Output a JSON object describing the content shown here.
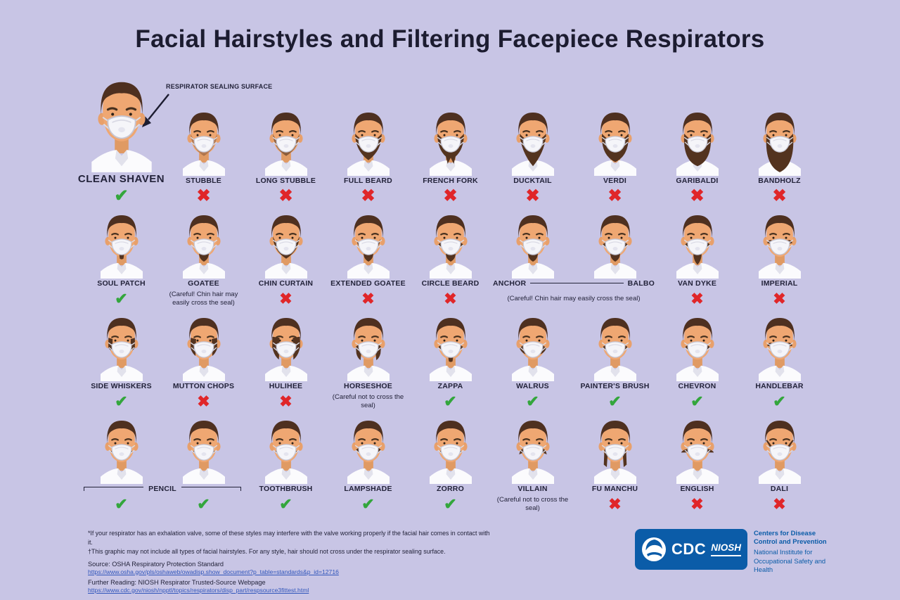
{
  "title": "Facial Hairstyles and Filtering Facepiece Respirators",
  "callout": "RESPIRATOR SEALING SURFACE",
  "icons": {
    "check": "✔",
    "x": "✖"
  },
  "colors": {
    "bg": "#c8c5e5",
    "title": "#1c1c30",
    "ink": "#23233a",
    "check": "#33a63c",
    "x": "#e02629",
    "link": "#3156bb",
    "brand": "#0b5ca8"
  },
  "rows": [
    {
      "items": [
        {
          "label": "CLEAN SHAVEN",
          "mark": "check",
          "beard": "none",
          "large": true
        },
        {
          "label": "STUBBLE",
          "mark": "x",
          "beard": "stubble"
        },
        {
          "label": "LONG STUBBLE",
          "mark": "x",
          "beard": "stubble-long"
        },
        {
          "label": "FULL BEARD",
          "mark": "x",
          "beard": "beard-full"
        },
        {
          "label": "FRENCH FORK",
          "mark": "x",
          "beard": "beard-french-fork"
        },
        {
          "label": "DUCKTAIL",
          "mark": "x",
          "beard": "beard-ducktail"
        },
        {
          "label": "VERDI",
          "mark": "x",
          "beard": "beard-verdi"
        },
        {
          "label": "GARIBALDI",
          "mark": "x",
          "beard": "beard-garibaldi"
        },
        {
          "label": "BANDHOLZ",
          "mark": "x",
          "beard": "beard-bandholz"
        }
      ]
    },
    {
      "items": [
        {
          "label": "SOUL PATCH",
          "mark": "check",
          "beard": "soul-patch"
        },
        {
          "label": "GOATEE",
          "note": "(Careful! Chin hair may easily cross the seal)",
          "beard": "goatee"
        },
        {
          "label": "CHIN CURTAIN",
          "mark": "x",
          "beard": "chin-curtain"
        },
        {
          "label": "EXTENDED GOATEE",
          "mark": "x",
          "beard": "extended-goatee"
        },
        {
          "label": "CIRCLE BEARD",
          "mark": "x",
          "beard": "circle-beard"
        },
        {
          "group": true,
          "labels": [
            "ANCHOR",
            "BALBO"
          ],
          "beards": [
            "anchor",
            "balbo"
          ],
          "note": "(Careful! Chin hair may easily cross the seal)",
          "connector": true
        },
        {
          "label": "VAN DYKE",
          "mark": "x",
          "beard": "van-dyke"
        },
        {
          "label": "IMPERIAL",
          "mark": "x",
          "beard": "imperial"
        }
      ]
    },
    {
      "items": [
        {
          "label": "SIDE WHISKERS",
          "mark": "check",
          "beard": "side-whiskers"
        },
        {
          "label": "MUTTON CHOPS",
          "mark": "x",
          "beard": "mutton-chops"
        },
        {
          "label": "HULIHEE",
          "mark": "x",
          "beard": "hulihee"
        },
        {
          "label": "HORSESHOE",
          "note": "(Careful not to cross the seal)",
          "beard": "horseshoe"
        },
        {
          "label": "ZAPPA",
          "mark": "check",
          "beard": "zappa"
        },
        {
          "label": "WALRUS",
          "mark": "check",
          "beard": "walrus"
        },
        {
          "label": "PAINTER'S BRUSH",
          "mark": "check",
          "beard": "painters-brush"
        },
        {
          "label": "CHEVRON",
          "mark": "check",
          "beard": "chevron"
        },
        {
          "label": "HANDLEBAR",
          "mark": "check",
          "beard": "handlebar"
        }
      ]
    },
    {
      "items": [
        {
          "group": true,
          "label": "PENCIL",
          "beards": [
            "pencil",
            "pencil"
          ],
          "marks": [
            "check",
            "check"
          ],
          "bracket": true
        },
        {
          "label": "TOOTHBRUSH",
          "mark": "check",
          "beard": "toothbrush"
        },
        {
          "label": "LAMPSHADE",
          "mark": "check",
          "beard": "lampshade"
        },
        {
          "label": "ZORRO",
          "mark": "check",
          "beard": "zorro"
        },
        {
          "label": "VILLAIN",
          "note": "(Careful not to cross the seal)",
          "beard": "villain"
        },
        {
          "label": "FU MANCHU",
          "mark": "x",
          "beard": "fu-manchu"
        },
        {
          "label": "ENGLISH",
          "mark": "x",
          "beard": "english"
        },
        {
          "label": "DALI",
          "mark": "x",
          "beard": "dali"
        }
      ]
    }
  ],
  "footnotes": [
    "*If your respirator has an exhalation valve, some of these styles may interfere with the valve working properly if the facial hair comes in contact with it.",
    "†This graphic may not include all types of facial hairstyles. For any style, hair should not cross under the respirator sealing surface."
  ],
  "source": {
    "label": "Source: OSHA Respiratory Protection Standard",
    "url": "https://www.osha.gov/pls/oshaweb/owadisp.show_document?p_table=standards&p_id=12716"
  },
  "further": {
    "label": "Further Reading: NIOSH Respirator Trusted-Source Webpage",
    "url": "https://www.cdc.gov/niosh/npptl/topics/respirators/disp_part/respsource3fittest.html"
  },
  "branding": {
    "cdc_acronym": "CDC",
    "niosh_acronym": "NIOSH",
    "cdc_name": "Centers for Disease Control and Prevention",
    "niosh_name": "National Institute for Occupational Safety and Health"
  }
}
